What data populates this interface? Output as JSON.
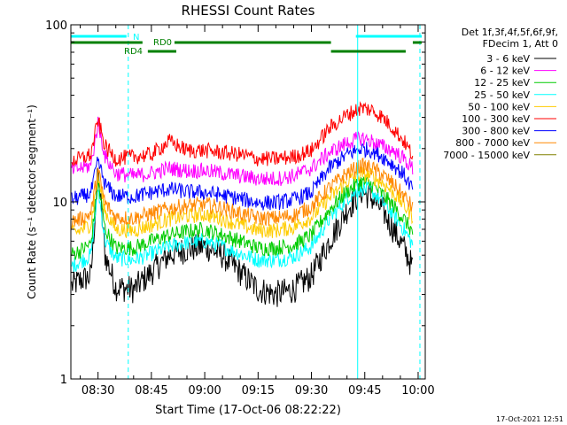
{
  "chart_data": {
    "type": "line",
    "title": "RHESSI Count Rates",
    "xlabel": "Start Time (17-Oct-06 08:22:22)",
    "ylabel": "Count Rate (s⁻¹ detector segment⁻¹)",
    "xlim": [
      "08:22:22",
      "10:02:00"
    ],
    "ylim": [
      1,
      100
    ],
    "yscale": "log",
    "grid": false,
    "legend_placement": "right",
    "x_ticks": [
      "08:30",
      "08:45",
      "09:00",
      "09:15",
      "09:30",
      "09:45",
      "10:00"
    ],
    "y_ticks": [
      "1",
      "10",
      "100"
    ],
    "legend_header": [
      "Det 1f,3f,4f,5f,6f,9f,",
      "FDecim 1, Att 0"
    ],
    "series": [
      {
        "name": "3 - 6 keV",
        "color": "#000000",
        "x": [
          "08:22",
          "08:25",
          "08:28",
          "08:30",
          "08:32",
          "08:35",
          "08:40",
          "08:45",
          "08:50",
          "08:55",
          "09:00",
          "09:05",
          "09:10",
          "09:15",
          "09:20",
          "09:25",
          "09:30",
          "09:35",
          "09:40",
          "09:44",
          "09:47",
          "09:50",
          "09:53",
          "09:56",
          "09:59"
        ],
        "y": [
          3.3,
          3.6,
          3.8,
          15,
          5,
          3.3,
          3.2,
          4,
          5,
          5.4,
          5.6,
          5,
          4,
          3.2,
          3,
          3.2,
          3.8,
          6,
          9,
          11.5,
          10.5,
          9,
          7,
          5.5,
          4
        ]
      },
      {
        "name": "6 - 12 keV",
        "color": "#ff00ff",
        "x": [
          "08:22",
          "08:25",
          "08:28",
          "08:30",
          "08:32",
          "08:35",
          "08:40",
          "08:45",
          "08:50",
          "08:55",
          "09:00",
          "09:05",
          "09:10",
          "09:15",
          "09:20",
          "09:25",
          "09:30",
          "09:35",
          "09:40",
          "09:44",
          "09:47",
          "09:50",
          "09:53",
          "09:56",
          "09:59"
        ],
        "y": [
          15,
          15.5,
          16,
          28,
          18,
          14.5,
          14,
          14.5,
          15.5,
          15,
          15,
          14.5,
          14,
          13.5,
          13.5,
          14,
          15.5,
          19,
          21.5,
          23,
          22,
          20.5,
          19.5,
          17.5,
          15
        ]
      },
      {
        "name": "12 - 25 keV",
        "color": "#00cc00",
        "x": [
          "08:22",
          "08:25",
          "08:28",
          "08:30",
          "08:32",
          "08:35",
          "08:40",
          "08:45",
          "08:50",
          "08:55",
          "09:00",
          "09:05",
          "09:10",
          "09:15",
          "09:20",
          "09:25",
          "09:30",
          "09:35",
          "09:40",
          "09:44",
          "09:47",
          "09:50",
          "09:53",
          "09:56",
          "09:59"
        ],
        "y": [
          5,
          5.3,
          5.8,
          13,
          7,
          5.5,
          5.5,
          6,
          6.5,
          6.8,
          7,
          6.5,
          6,
          5.5,
          5.5,
          5.7,
          6.5,
          9,
          11.5,
          13,
          12.5,
          11,
          9.5,
          8,
          6.5
        ]
      },
      {
        "name": "25 - 50 keV",
        "color": "#00ffff",
        "x": [
          "08:22",
          "08:25",
          "08:28",
          "08:30",
          "08:32",
          "08:35",
          "08:40",
          "08:45",
          "08:50",
          "08:55",
          "09:00",
          "09:05",
          "09:10",
          "09:15",
          "09:20",
          "09:25",
          "09:30",
          "09:35",
          "09:40",
          "09:44",
          "09:47",
          "09:50",
          "09:53",
          "09:56",
          "09:59"
        ],
        "y": [
          4.3,
          4.6,
          5,
          12,
          6,
          4.8,
          4.7,
          5.1,
          5.6,
          5.9,
          6,
          5.6,
          5.1,
          4.7,
          4.7,
          4.9,
          5.6,
          8,
          10.5,
          12,
          11.5,
          10,
          8.5,
          7,
          5.5
        ]
      },
      {
        "name": "50 - 100 keV",
        "color": "#ffcc00",
        "x": [
          "08:22",
          "08:25",
          "08:28",
          "08:30",
          "08:32",
          "08:35",
          "08:40",
          "08:45",
          "08:50",
          "08:55",
          "09:00",
          "09:05",
          "09:10",
          "09:15",
          "09:20",
          "09:25",
          "09:30",
          "09:35",
          "09:40",
          "09:44",
          "09:47",
          "09:50",
          "09:53",
          "09:56",
          "09:59"
        ],
        "y": [
          6.5,
          6.9,
          7.5,
          14,
          8.8,
          7,
          6.9,
          7.4,
          8,
          8.3,
          8.5,
          8,
          7.4,
          6.9,
          6.9,
          7.2,
          8.2,
          10.5,
          13,
          14.5,
          14,
          12.8,
          11.3,
          9.6,
          8
        ]
      },
      {
        "name": "100 - 300 keV",
        "color": "#ff0000",
        "x": [
          "08:22",
          "08:25",
          "08:28",
          "08:30",
          "08:32",
          "08:35",
          "08:40",
          "08:45",
          "08:50",
          "08:55",
          "09:00",
          "09:05",
          "09:10",
          "09:15",
          "09:20",
          "09:25",
          "09:30",
          "09:35",
          "09:40",
          "09:44",
          "09:47",
          "09:50",
          "09:53",
          "09:56",
          "09:59"
        ],
        "y": [
          17,
          17.5,
          18.5,
          29,
          20.5,
          17.5,
          18,
          18.5,
          22,
          19.5,
          19.5,
          19,
          18.5,
          17.5,
          17.5,
          18,
          19.5,
          26,
          31,
          34,
          33,
          30,
          26,
          22,
          17.5
        ]
      },
      {
        "name": "300 - 800 keV",
        "color": "#0000ff",
        "x": [
          "08:22",
          "08:25",
          "08:28",
          "08:30",
          "08:32",
          "08:35",
          "08:40",
          "08:45",
          "08:50",
          "08:55",
          "09:00",
          "09:05",
          "09:10",
          "09:15",
          "09:20",
          "09:25",
          "09:30",
          "09:35",
          "09:40",
          "09:44",
          "09:47",
          "09:50",
          "09:53",
          "09:56",
          "09:59"
        ],
        "y": [
          10.3,
          10.6,
          11.2,
          17,
          12.5,
          10.8,
          10.7,
          11.3,
          11.8,
          11.4,
          11.3,
          10.9,
          10.4,
          9.9,
          9.9,
          10.3,
          11.3,
          15.5,
          18.5,
          20,
          19.5,
          18,
          16.2,
          14.2,
          11.3
        ]
      },
      {
        "name": "800 - 7000 keV",
        "color": "#ff8800",
        "x": [
          "08:22",
          "08:25",
          "08:28",
          "08:30",
          "08:32",
          "08:35",
          "08:40",
          "08:45",
          "08:50",
          "08:55",
          "09:00",
          "09:05",
          "09:10",
          "09:15",
          "09:20",
          "09:25",
          "09:30",
          "09:35",
          "09:40",
          "09:44",
          "09:47",
          "09:50",
          "09:53",
          "09:56",
          "09:59"
        ],
        "y": [
          7.7,
          8,
          8.6,
          15,
          9.8,
          8.2,
          8.1,
          8.6,
          9.2,
          9.5,
          9.7,
          9.2,
          8.6,
          8.1,
          8.1,
          8.4,
          9.4,
          12,
          14.5,
          16,
          15.5,
          14.2,
          12.6,
          10.8,
          9
        ]
      },
      {
        "name": "7000 - 15000 keV",
        "color": "#808000",
        "x": [],
        "y": []
      }
    ],
    "annotations": {
      "attenuator_bar": {
        "label": "N",
        "color": "#00ffff",
        "segments": [
          [
            "08:22:22",
            "08:38:00"
          ],
          [
            "09:42:30",
            "10:01:00"
          ]
        ]
      },
      "flag_rows": [
        {
          "label": "RD0",
          "color": "#008000",
          "segments": [
            [
              "08:22:22",
              "08:42:30"
            ],
            [
              "08:51:30",
              "09:35:30"
            ],
            [
              "09:58:30",
              "10:01:00"
            ]
          ]
        },
        {
          "label": "RD4",
          "color": "#008000",
          "segments": [
            [
              "08:44:00",
              "08:52:00"
            ],
            [
              "09:35:30",
              "09:56:30"
            ]
          ]
        }
      ],
      "solid_lines": [
        "08:22:22",
        "09:43:00"
      ],
      "dashed_lines": [
        "08:38:30",
        "10:00:30"
      ]
    }
  },
  "footer": {
    "timestamp": "17-Oct-2021 12:51"
  }
}
